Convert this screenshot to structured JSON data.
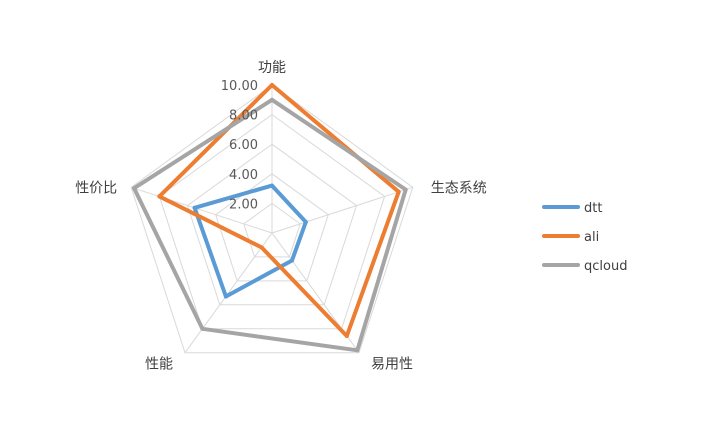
{
  "chart_data": {
    "type": "radar",
    "title": "",
    "axes": [
      "功能",
      "生态系统",
      "易用性",
      "性能",
      "性价比"
    ],
    "range": [
      0,
      10
    ],
    "ticks": [
      "2.00",
      "4.00",
      "6.00",
      "8.00",
      "10.00"
    ],
    "tick_values": [
      2,
      4,
      6,
      8,
      10
    ],
    "gridlines": true,
    "legend_position": "right",
    "series": [
      {
        "name": "dtt",
        "color": "#5B9BD5",
        "values": [
          3.2,
          2.4,
          2.3,
          5.3,
          5.5
        ]
      },
      {
        "name": "ali",
        "color": "#ED7D31",
        "values": [
          10.0,
          9.0,
          8.6,
          1.2,
          8.0
        ]
      },
      {
        "name": "qcloud",
        "color": "#A5A5A5",
        "values": [
          9.0,
          9.5,
          9.8,
          8.0,
          9.8
        ]
      }
    ]
  }
}
